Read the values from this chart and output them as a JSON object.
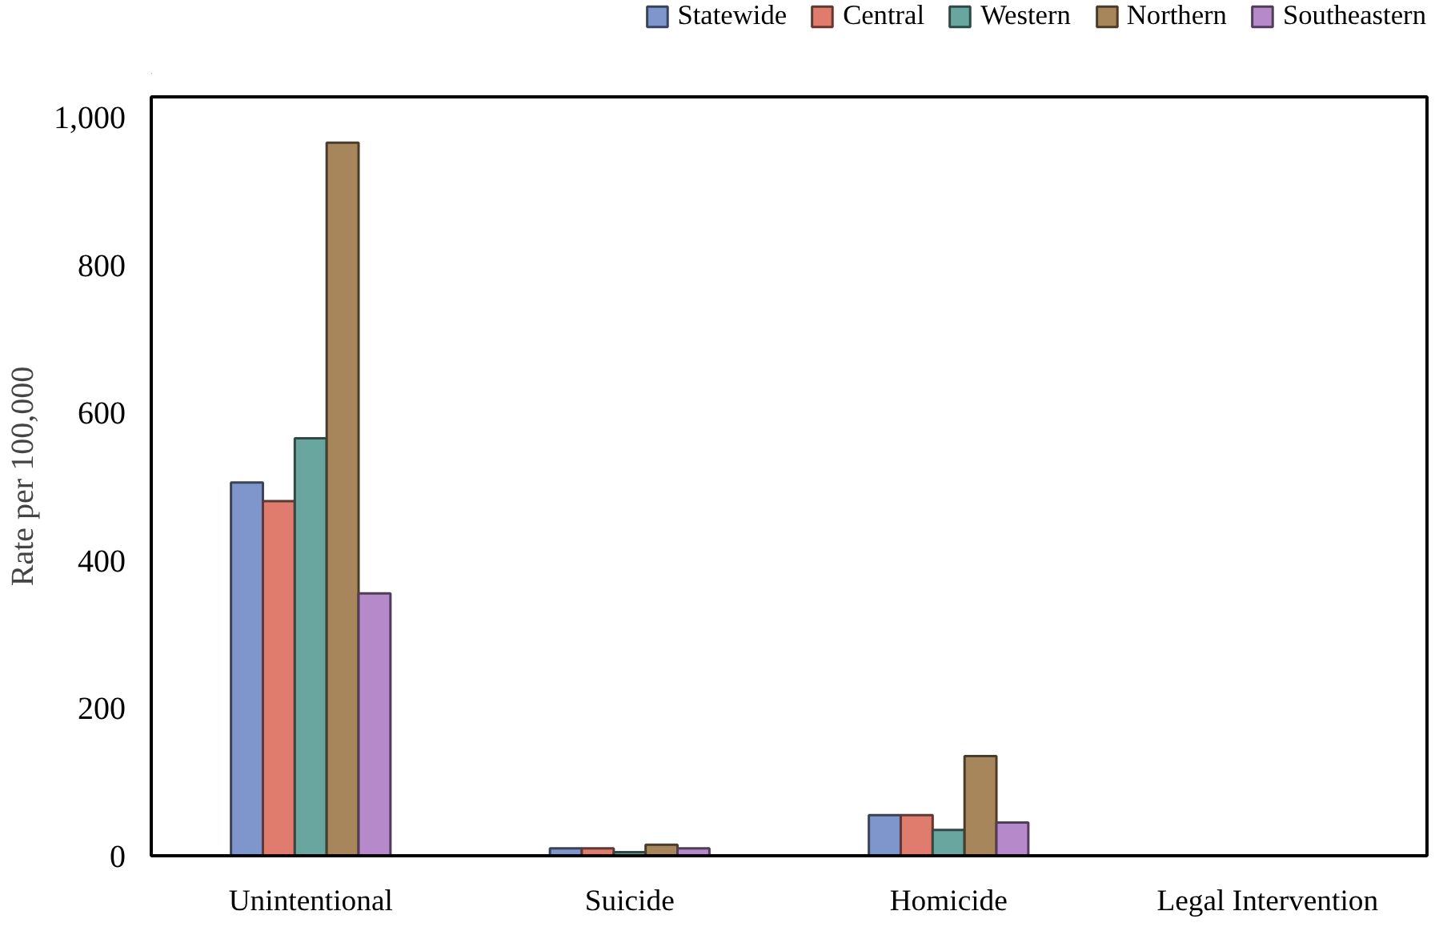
{
  "chart_data": {
    "type": "bar",
    "ylabel": "Rate per 100,000",
    "categories": [
      "Unintentional",
      "Suicide",
      "Homicide",
      "Legal Intervention"
    ],
    "series": [
      {
        "name": "Statewide",
        "color": "#7f96cc",
        "values": [
          505,
          10,
          55,
          null
        ]
      },
      {
        "name": "Central",
        "color": "#df7c6e",
        "values": [
          480,
          10,
          55,
          null
        ]
      },
      {
        "name": "Western",
        "color": "#68a69f",
        "values": [
          565,
          5,
          35,
          null
        ]
      },
      {
        "name": "Northern",
        "color": "#a8865b",
        "values": [
          965,
          15,
          135,
          null
        ]
      },
      {
        "name": "Southeastern",
        "color": "#b589ca",
        "values": [
          355,
          10,
          45,
          null
        ]
      }
    ],
    "ylim": [
      0,
      1027
    ],
    "yticks": [
      0,
      200,
      400,
      600,
      800,
      {
        "value": 1000,
        "label": "1,000"
      }
    ],
    "grid": false,
    "legend": "top"
  }
}
